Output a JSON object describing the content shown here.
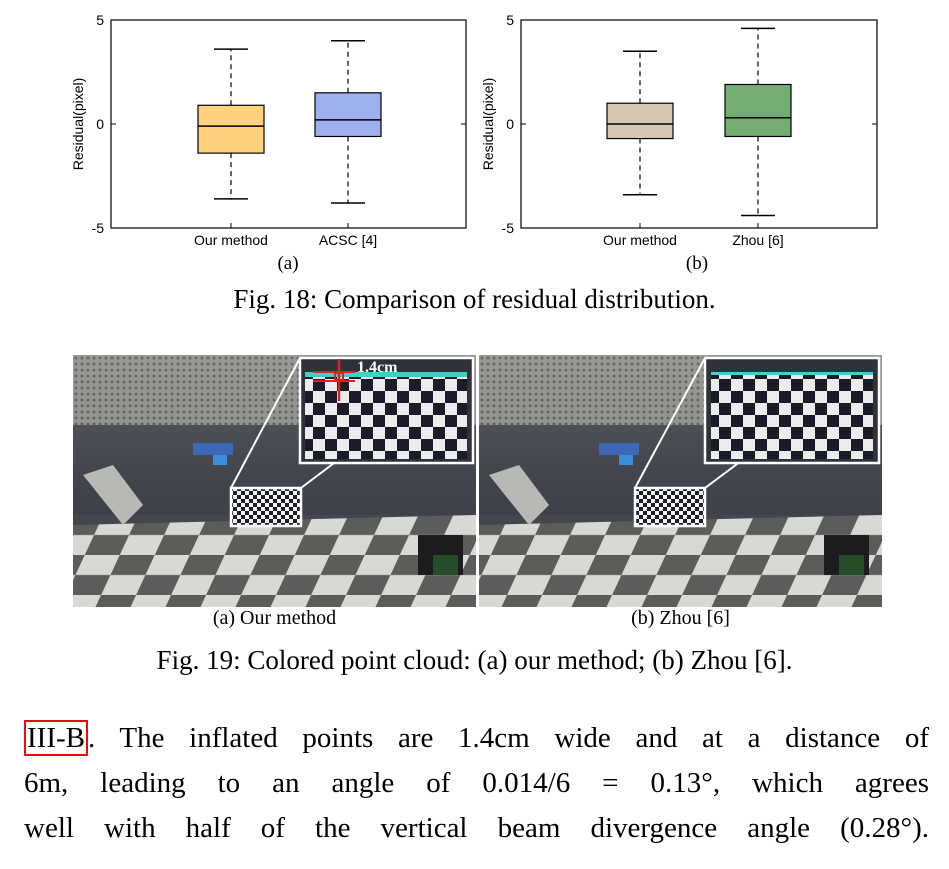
{
  "figure18": {
    "caption": "Fig. 18: Comparison of residual distribution.",
    "panels": [
      {
        "label": "(a)"
      },
      {
        "label": "(b)"
      }
    ]
  },
  "chart_data": [
    {
      "type": "box",
      "ylabel": "Residual(pixel)",
      "ylim": [
        -5,
        5
      ],
      "yticks": [
        "-5",
        "0",
        "5"
      ],
      "categories": [
        "Our method",
        "ACSC [4]"
      ],
      "boxes": [
        {
          "name": "Our method",
          "whisker_low": -3.6,
          "q1": -1.4,
          "median": -0.1,
          "q3": 0.9,
          "whisker_high": 3.6,
          "color": "#ffd280"
        },
        {
          "name": "ACSC [4]",
          "whisker_low": -3.8,
          "q1": -0.6,
          "median": 0.2,
          "q3": 1.5,
          "whisker_high": 4.0,
          "color": "#9fb0ee"
        }
      ]
    },
    {
      "type": "box",
      "ylabel": "Residual(pixel)",
      "ylim": [
        -5,
        5
      ],
      "yticks": [
        "-5",
        "0",
        "5"
      ],
      "categories": [
        "Our method",
        "Zhou [6]"
      ],
      "boxes": [
        {
          "name": "Our method",
          "whisker_low": -3.4,
          "q1": -0.7,
          "median": 0.0,
          "q3": 1.0,
          "whisker_high": 3.5,
          "color": "#d4c8b2"
        },
        {
          "name": "Zhou [6]",
          "whisker_low": -4.4,
          "q1": -0.6,
          "median": 0.3,
          "q3": 1.9,
          "whisker_high": 4.6,
          "color": "#74ad74"
        }
      ]
    }
  ],
  "figure19": {
    "caption": "Fig. 19: Colored point cloud: (a) our method; (b) Zhou [6].",
    "images": [
      {
        "label": "(a) Our method",
        "annotation": "1.4cm"
      },
      {
        "label": "(b) Zhou [6]"
      }
    ]
  },
  "paragraph": {
    "ref": "III-B",
    "line1_rest": ". The inflated points are 1.4cm wide and at a distance of",
    "line2": "6m, leading to an angle of 0.014/6 = 0.13°, which agrees",
    "line3": "well with half of the vertical beam divergence angle (0.28°)."
  }
}
